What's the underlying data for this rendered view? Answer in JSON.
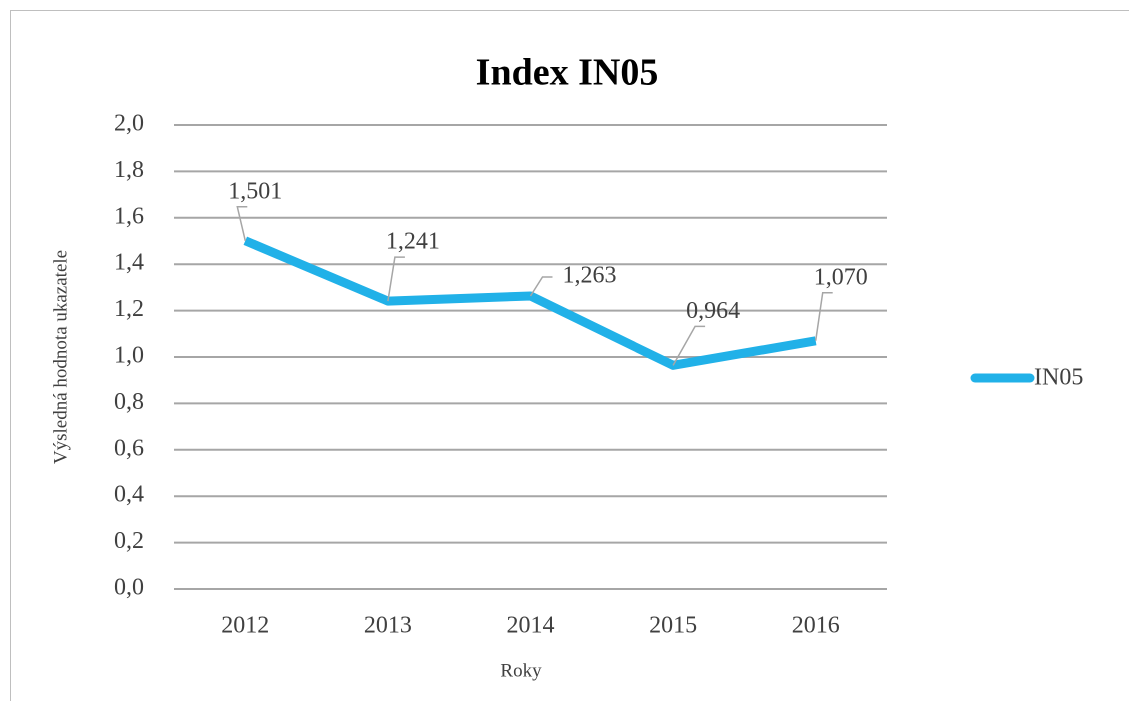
{
  "chart_data": {
    "type": "line",
    "title": "Index IN05",
    "x_label": "Roky",
    "y_label": "Výsledná hodnota ukazatele",
    "categories": [
      "2012",
      "2013",
      "2014",
      "2015",
      "2016"
    ],
    "series": [
      {
        "name": "IN05",
        "color": "#21b1e8",
        "values": [
          1.501,
          1.241,
          1.263,
          0.964,
          1.07
        ],
        "value_labels": [
          "1,501",
          "1,241",
          "1,263",
          "0,964",
          "1,070"
        ]
      }
    ],
    "ylim": [
      0,
      2
    ],
    "yticks": [
      {
        "value": 0,
        "label": "0,0"
      },
      {
        "value": 0.2,
        "label": "0,2"
      },
      {
        "value": 0.4,
        "label": "0,4"
      },
      {
        "value": 0.6,
        "label": "0,6"
      },
      {
        "value": 0.8,
        "label": "0,8"
      },
      {
        "value": 1.0,
        "label": "1,0"
      },
      {
        "value": 1.2,
        "label": "1,2"
      },
      {
        "value": 1.4,
        "label": "1,4"
      },
      {
        "value": 1.6,
        "label": "1,6"
      },
      {
        "value": 1.8,
        "label": "1,8"
      },
      {
        "value": 2.0,
        "label": "2,0"
      }
    ],
    "grid": true,
    "legend": "right"
  }
}
